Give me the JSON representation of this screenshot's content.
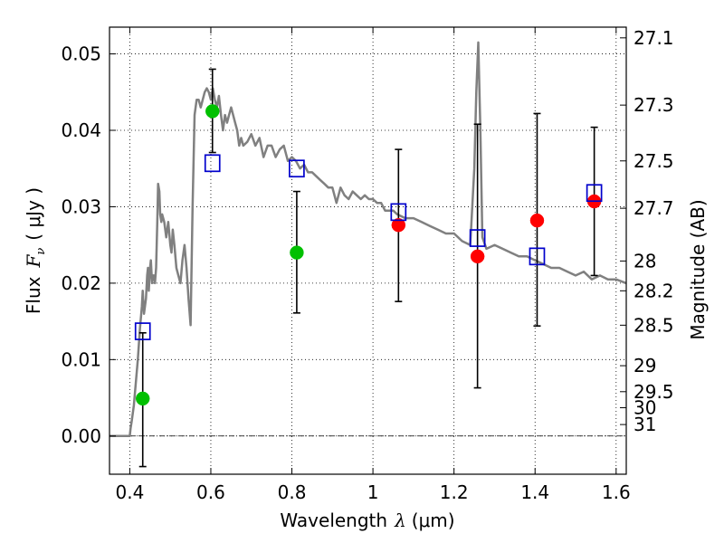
{
  "chart_data": {
    "type": "scatter",
    "title": "",
    "xlabel_text": "Wavelength",
    "xlabel_symbol": "λ",
    "xlabel_unit": "(μm)",
    "ylabel_text": "Flux",
    "ylabel_symbol": "F",
    "ylabel_subscript": "ν",
    "ylabel_unit": "( μJy )",
    "y2label": "Magnitude (AB)",
    "xlim": [
      0.35,
      1.625
    ],
    "ylim": [
      -0.005,
      0.0535
    ],
    "x_ticks": [
      {
        "value": 0.4,
        "label": "0.4"
      },
      {
        "value": 0.6,
        "label": "0.6"
      },
      {
        "value": 0.8,
        "label": "0.8"
      },
      {
        "value": 1.0,
        "label": "1"
      },
      {
        "value": 1.2,
        "label": "1.2"
      },
      {
        "value": 1.4,
        "label": "1.4"
      },
      {
        "value": 1.6,
        "label": "1.6"
      }
    ],
    "y_ticks": [
      {
        "value": 0.0,
        "label": "0.00"
      },
      {
        "value": 0.01,
        "label": "0.01"
      },
      {
        "value": 0.02,
        "label": "0.02"
      },
      {
        "value": 0.03,
        "label": "0.03"
      },
      {
        "value": 0.04,
        "label": "0.04"
      },
      {
        "value": 0.05,
        "label": "0.05"
      }
    ],
    "y2_ticks": [
      {
        "flux": 0.0521,
        "label": "27.1"
      },
      {
        "flux": 0.0433,
        "label": "27.3"
      },
      {
        "flux": 0.036,
        "label": "27.5"
      },
      {
        "flux": 0.0298,
        "label": "27.7"
      },
      {
        "flux": 0.0229,
        "label": "28"
      },
      {
        "flux": 0.019,
        "label": "28.2"
      },
      {
        "flux": 0.0145,
        "label": "28.5"
      },
      {
        "flux": 0.0092,
        "label": "29"
      },
      {
        "flux": 0.0058,
        "label": "29.5"
      },
      {
        "flux": 0.0037,
        "label": "30"
      },
      {
        "flux": 0.0015,
        "label": "31"
      }
    ],
    "grid": true,
    "series": [
      {
        "kind": "line",
        "color": "#808080",
        "x": [
          0.35,
          0.4,
          0.402,
          0.405,
          0.41,
          0.415,
          0.42,
          0.425,
          0.43,
          0.432,
          0.435,
          0.44,
          0.443,
          0.445,
          0.447,
          0.45,
          0.452,
          0.455,
          0.457,
          0.46,
          0.462,
          0.465,
          0.468,
          0.47,
          0.473,
          0.475,
          0.478,
          0.48,
          0.485,
          0.49,
          0.495,
          0.5,
          0.503,
          0.506,
          0.51,
          0.515,
          0.52,
          0.525,
          0.53,
          0.535,
          0.54,
          0.545,
          0.55,
          0.555,
          0.56,
          0.565,
          0.57,
          0.575,
          0.58,
          0.585,
          0.59,
          0.595,
          0.6,
          0.605,
          0.61,
          0.615,
          0.62,
          0.625,
          0.63,
          0.635,
          0.64,
          0.645,
          0.65,
          0.655,
          0.66,
          0.665,
          0.67,
          0.675,
          0.68,
          0.69,
          0.7,
          0.71,
          0.72,
          0.73,
          0.74,
          0.75,
          0.76,
          0.77,
          0.78,
          0.79,
          0.8,
          0.81,
          0.82,
          0.83,
          0.84,
          0.85,
          0.86,
          0.87,
          0.88,
          0.89,
          0.9,
          0.91,
          0.92,
          0.93,
          0.94,
          0.95,
          0.96,
          0.97,
          0.98,
          0.99,
          1.0,
          1.01,
          1.02,
          1.03,
          1.04,
          1.05,
          1.06,
          1.08,
          1.1,
          1.12,
          1.14,
          1.16,
          1.18,
          1.2,
          1.22,
          1.24,
          1.25,
          1.255,
          1.26,
          1.265,
          1.27,
          1.28,
          1.3,
          1.32,
          1.34,
          1.36,
          1.38,
          1.4,
          1.42,
          1.44,
          1.46,
          1.48,
          1.5,
          1.52,
          1.54,
          1.56,
          1.58,
          1.6,
          1.625
        ],
        "y": [
          0.0,
          0.0,
          0.001,
          0.002,
          0.004,
          0.007,
          0.01,
          0.014,
          0.017,
          0.019,
          0.016,
          0.018,
          0.021,
          0.022,
          0.019,
          0.022,
          0.023,
          0.02,
          0.021,
          0.021,
          0.02,
          0.022,
          0.028,
          0.033,
          0.032,
          0.029,
          0.028,
          0.029,
          0.028,
          0.026,
          0.028,
          0.025,
          0.024,
          0.027,
          0.025,
          0.022,
          0.021,
          0.02,
          0.023,
          0.025,
          0.022,
          0.018,
          0.0145,
          0.03,
          0.042,
          0.044,
          0.044,
          0.043,
          0.044,
          0.045,
          0.0455,
          0.045,
          0.044,
          0.0455,
          0.044,
          0.043,
          0.0445,
          0.042,
          0.04,
          0.042,
          0.041,
          0.042,
          0.043,
          0.042,
          0.041,
          0.04,
          0.038,
          0.039,
          0.038,
          0.0385,
          0.0395,
          0.038,
          0.039,
          0.0365,
          0.038,
          0.038,
          0.0365,
          0.0375,
          0.038,
          0.036,
          0.0365,
          0.036,
          0.035,
          0.0355,
          0.0345,
          0.0345,
          0.034,
          0.0335,
          0.033,
          0.0325,
          0.0325,
          0.0305,
          0.0325,
          0.0315,
          0.031,
          0.032,
          0.0315,
          0.031,
          0.0315,
          0.031,
          0.031,
          0.0305,
          0.0305,
          0.0295,
          0.0295,
          0.0295,
          0.029,
          0.0285,
          0.0285,
          0.028,
          0.0275,
          0.027,
          0.0265,
          0.0265,
          0.0255,
          0.025,
          0.035,
          0.045,
          0.0515,
          0.04,
          0.026,
          0.0245,
          0.025,
          0.0245,
          0.024,
          0.0235,
          0.0235,
          0.023,
          0.0225,
          0.022,
          0.022,
          0.0215,
          0.021,
          0.0215,
          0.0205,
          0.021,
          0.0205,
          0.0205,
          0.02
        ]
      },
      {
        "kind": "errorbar",
        "color": "#000000",
        "points": [
          {
            "x": 0.432,
            "low": -0.004,
            "high": 0.0135
          },
          {
            "x": 0.604,
            "low": 0.0371,
            "high": 0.048
          },
          {
            "x": 0.812,
            "low": 0.0161,
            "high": 0.032
          },
          {
            "x": 1.063,
            "low": 0.0176,
            "high": 0.0375
          },
          {
            "x": 1.258,
            "low": 0.0063,
            "high": 0.0408
          },
          {
            "x": 1.405,
            "low": 0.0144,
            "high": 0.0422
          },
          {
            "x": 1.546,
            "low": 0.021,
            "high": 0.0404
          }
        ]
      },
      {
        "kind": "marker-circle",
        "color": "#00c000",
        "x": [
          0.432,
          0.604,
          0.812
        ],
        "y": [
          0.0049,
          0.0425,
          0.024
        ]
      },
      {
        "kind": "marker-circle",
        "color": "#ff0000",
        "x": [
          1.063,
          1.258,
          1.405,
          1.546
        ],
        "y": [
          0.0276,
          0.0235,
          0.0282,
          0.0307
        ]
      },
      {
        "kind": "marker-square",
        "color": "#0000cc",
        "x": [
          0.432,
          0.604,
          0.812,
          1.063,
          1.258,
          1.405,
          1.546
        ],
        "y": [
          0.0137,
          0.0357,
          0.035,
          0.0293,
          0.0259,
          0.0235,
          0.0318
        ]
      }
    ]
  }
}
